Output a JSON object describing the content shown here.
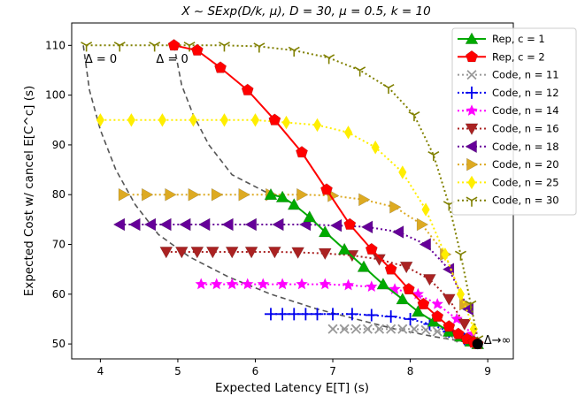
{
  "chart_data": {
    "type": "scatter",
    "title": "X ~ SExp(D/k, μ), D = 30, μ = 0.5, k = 10",
    "xlabel": "Expected Latency E[T] (s)",
    "ylabel": "Expected Cost w/ cancel E[C^c] (s)",
    "xlim": [
      3.63,
      9.33
    ],
    "ylim": [
      47.0,
      114.5
    ],
    "x_ticks": [
      "4",
      "5",
      "6",
      "7",
      "8",
      "9"
    ],
    "y_ticks": [
      "50",
      "60",
      "70",
      "80",
      "90",
      "100",
      "110"
    ],
    "grid": false,
    "legend_position": "top-right",
    "annotations": [
      {
        "text": "Δ = 0",
        "x": 3.8,
        "y": 106.5
      },
      {
        "text": "Δ = 0",
        "x": 4.72,
        "y": 106.5
      },
      {
        "text": "Δ→∞",
        "x": 8.95,
        "y": 50.0
      }
    ],
    "end_point": {
      "x": 8.87,
      "y": 50.0,
      "color": "#000000"
    },
    "frontier_curves": [
      {
        "x": [
          3.78,
          3.86,
          4.0,
          4.2,
          4.45,
          4.75,
          5.15,
          5.65,
          6.2,
          6.8,
          7.3,
          7.8,
          8.3,
          8.87
        ],
        "y": [
          110,
          101,
          93,
          85,
          78,
          72,
          67.5,
          63.5,
          60,
          57,
          55,
          53,
          51.5,
          50
        ]
      },
      {
        "x": [
          4.95,
          5.05,
          5.2,
          5.4,
          5.7,
          6.2
        ],
        "y": [
          110,
          102,
          96,
          90,
          84,
          80
        ]
      }
    ],
    "series": [
      {
        "name": "Rep, c = 1",
        "color": "#00aa00",
        "marker": "triangle-up",
        "line": "solid",
        "x": [
          6.2,
          6.35,
          6.5,
          6.7,
          6.9,
          7.15,
          7.4,
          7.65,
          7.9,
          8.1,
          8.3,
          8.5,
          8.65,
          8.78,
          8.87
        ],
        "y": [
          80,
          79.5,
          78,
          75.5,
          72.5,
          69,
          65.5,
          62,
          59,
          56.5,
          54.5,
          52.5,
          51.5,
          50.5,
          50
        ]
      },
      {
        "name": "Rep, c = 2",
        "color": "#ff0000",
        "marker": "pentagon",
        "line": "solid",
        "x": [
          4.95,
          5.25,
          5.55,
          5.9,
          6.25,
          6.6,
          6.92,
          7.22,
          7.5,
          7.75,
          7.98,
          8.17,
          8.35,
          8.5,
          8.62,
          8.73,
          8.82,
          8.87
        ],
        "y": [
          110,
          109,
          105.5,
          101,
          95,
          88.5,
          81,
          74,
          69,
          65,
          61,
          58,
          55.5,
          53.5,
          52,
          51,
          50.3,
          50
        ]
      },
      {
        "name": "Code, n = 11",
        "color": "#999999",
        "marker": "x",
        "line": "dotted",
        "x": [
          7.0,
          7.15,
          7.3,
          7.45,
          7.6,
          7.75,
          7.9,
          8.05,
          8.2,
          8.35,
          8.5,
          8.65,
          8.8
        ],
        "y": [
          53,
          53,
          53,
          53,
          53,
          53,
          53,
          53,
          52.8,
          52.5,
          52,
          51.2,
          50.5
        ]
      },
      {
        "name": "Code, n = 12",
        "color": "#0000ee",
        "marker": "plus",
        "line": "dotted",
        "x": [
          6.2,
          6.35,
          6.5,
          6.65,
          6.8,
          7.0,
          7.25,
          7.5,
          7.75,
          8.0,
          8.25,
          8.5,
          8.7
        ],
        "y": [
          56,
          56,
          56,
          56,
          56,
          56,
          56,
          55.8,
          55.5,
          55,
          54,
          52.5,
          51
        ]
      },
      {
        "name": "Code, n = 14",
        "color": "#ff00ff",
        "marker": "star",
        "line": "dotted",
        "x": [
          5.3,
          5.5,
          5.7,
          5.9,
          6.1,
          6.35,
          6.6,
          6.9,
          7.2,
          7.5,
          7.8,
          8.1,
          8.35,
          8.6,
          8.8
        ],
        "y": [
          62,
          62,
          62,
          62,
          62,
          62,
          62,
          62,
          61.8,
          61.5,
          61,
          60,
          58,
          55,
          52
        ]
      },
      {
        "name": "Code, n = 16",
        "color": "#aa2222",
        "marker": "triangle-down",
        "line": "dotted",
        "x": [
          4.85,
          5.05,
          5.25,
          5.45,
          5.7,
          5.95,
          6.25,
          6.55,
          6.9,
          7.25,
          7.6,
          7.95,
          8.25,
          8.5,
          8.7
        ],
        "y": [
          68.5,
          68.5,
          68.5,
          68.5,
          68.5,
          68.5,
          68.5,
          68.4,
          68.2,
          67.8,
          67,
          65.5,
          63,
          59,
          54
        ]
      },
      {
        "name": "Code, n = 18",
        "color": "#660099",
        "marker": "triangle-left",
        "line": "dotted",
        "x": [
          4.25,
          4.45,
          4.65,
          4.85,
          5.1,
          5.35,
          5.65,
          5.95,
          6.3,
          6.65,
          7.05,
          7.45,
          7.85,
          8.2,
          8.5,
          8.75
        ],
        "y": [
          74,
          74,
          74,
          74,
          74,
          74,
          74,
          74,
          74,
          74,
          73.8,
          73.5,
          72.5,
          70,
          65,
          57
        ]
      },
      {
        "name": "Code, n = 20",
        "color": "#ddaa22",
        "marker": "triangle-right",
        "line": "dotted",
        "x": [
          4.3,
          4.6,
          4.9,
          5.2,
          5.5,
          5.85,
          6.2,
          6.6,
          7.0,
          7.4,
          7.8,
          8.15,
          8.45,
          8.7
        ],
        "y": [
          80,
          80,
          80,
          80,
          80,
          80,
          80,
          80,
          79.8,
          79,
          77.5,
          74,
          68,
          58
        ]
      },
      {
        "name": "Code, n = 25",
        "color": "#ffee00",
        "marker": "diamond",
        "line": "dotted",
        "x": [
          4.0,
          4.4,
          4.8,
          5.2,
          5.6,
          6.0,
          6.4,
          6.8,
          7.2,
          7.55,
          7.9,
          8.2,
          8.45,
          8.65,
          8.82
        ],
        "y": [
          95,
          95,
          95,
          95,
          95,
          95,
          94.5,
          94,
          92.5,
          89.5,
          84.5,
          77,
          68,
          60,
          53
        ]
      },
      {
        "name": "Code, n = 30",
        "color": "#808000",
        "marker": "tri-down",
        "line": "dotted",
        "x": [
          3.82,
          4.25,
          4.7,
          5.15,
          5.6,
          6.05,
          6.5,
          6.95,
          7.35,
          7.72,
          8.05,
          8.3,
          8.5,
          8.65,
          8.78,
          8.87
        ],
        "y": [
          110,
          110,
          110,
          110,
          110,
          109.8,
          109,
          107.5,
          105,
          101.5,
          96,
          88,
          78,
          68,
          58,
          51
        ]
      }
    ]
  }
}
